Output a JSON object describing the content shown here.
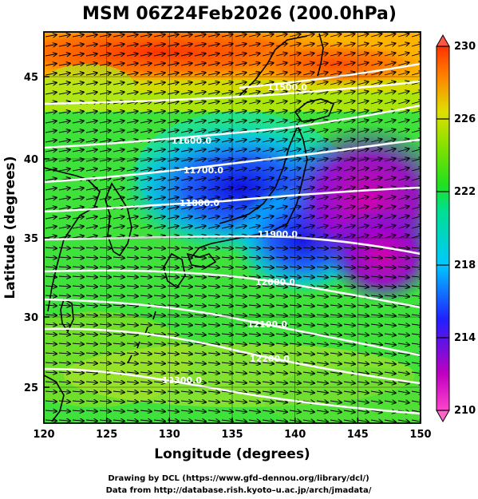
{
  "title": "MSM 06Z24Feb2026 (200.0hPa)",
  "x_axis": {
    "label": "Longitude (degrees)",
    "ticks": [
      "120",
      "125",
      "130",
      "135",
      "140",
      "145",
      "150"
    ]
  },
  "y_axis": {
    "label": "Latitude  (degrees)",
    "ticks": [
      "25",
      "30",
      "35",
      "40",
      "45"
    ]
  },
  "colorbar": {
    "labels": [
      "230",
      "226",
      "222",
      "218",
      "214",
      "210"
    ],
    "range": [
      210,
      230
    ]
  },
  "contour_labels": [
    "11500.0",
    "11600.0",
    "11700.0",
    "11800.0",
    "11900.0",
    "12000.0",
    "12100.0",
    "12200.0",
    "12300.0"
  ],
  "credits": [
    "Drawing by DCL (https://www.gfd–dennou.org/library/dcl/)",
    "Data from http://database.rish.kyoto–u.ac.jp/arch/jmadata/"
  ],
  "map_data": {
    "type": "meteorological_map",
    "region": {
      "lon": [
        120,
        150
      ],
      "lat": [
        22.5,
        48
      ]
    },
    "shaded_field": {
      "unit": "K",
      "range": [
        210,
        230
      ],
      "colormap": "rainbow"
    },
    "contours": [
      {
        "value": 11500.0,
        "label_lon": 141.0,
        "label_lat": 44.5
      },
      {
        "value": 11600.0,
        "label_lon": 132.5,
        "label_lat": 41.3
      },
      {
        "value": 11700.0,
        "label_lon": 133.0,
        "label_lat": 39.6
      },
      {
        "value": 11800.0,
        "label_lon": 132.2,
        "label_lat": 37.5
      },
      {
        "value": 11900.0,
        "label_lon": 139.0,
        "label_lat": 35.4
      },
      {
        "value": 12000.0,
        "label_lon": 139.3,
        "label_lat": 32.2
      },
      {
        "value": 12100.0,
        "label_lon": 138.0,
        "label_lat": 29.5
      },
      {
        "value": 12200.0,
        "label_lon": 137.5,
        "label_lat": 26.9
      },
      {
        "value": 12300.0,
        "label_lon": 130.0,
        "label_lat": 24.5
      }
    ],
    "wind_field": "westerly vectors"
  }
}
